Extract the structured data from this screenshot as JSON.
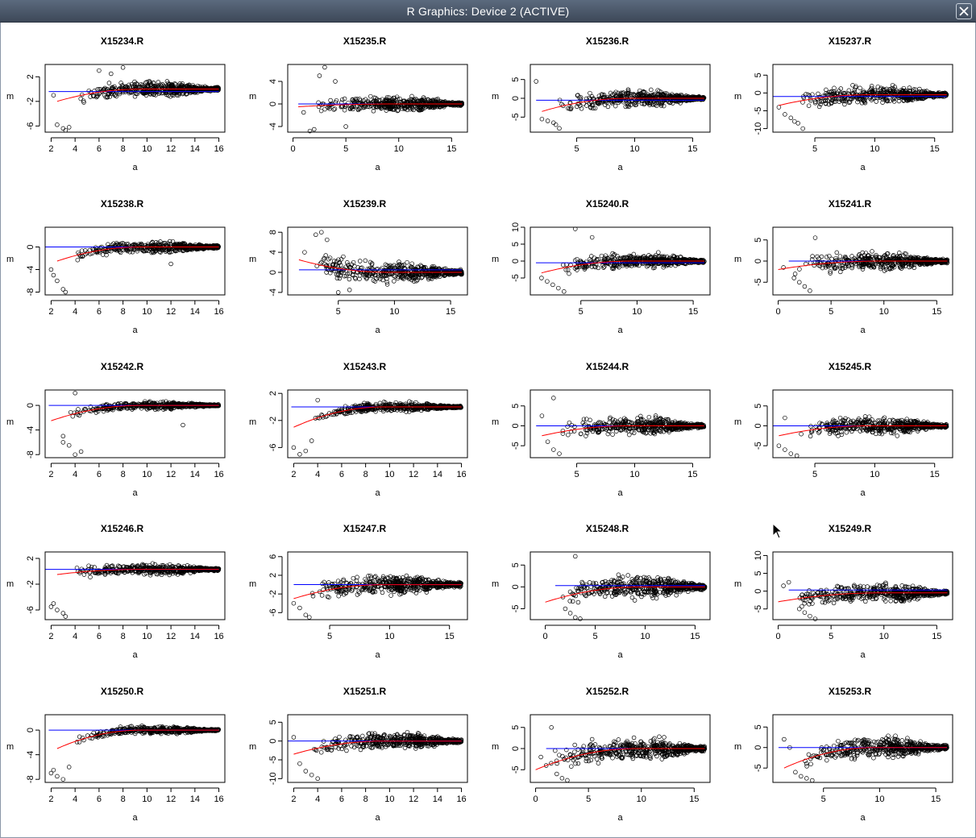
{
  "window": {
    "title": "R Graphics: Device 2 (ACTIVE)"
  },
  "plot_labels": {
    "xlabel": "a",
    "ylabel": "m"
  },
  "colors": {
    "loess": "#ff0000",
    "reference": "#0000ff",
    "points": "#000000"
  },
  "icons": {
    "close": "close-icon",
    "cursor": "mouse-cursor-icon"
  },
  "chart_data": [
    {
      "type": "scatter",
      "title": "X15234.R",
      "xlabel": "a",
      "ylabel": "m",
      "xlim": [
        1.5,
        16.5
      ],
      "ylim": [
        -7,
        4
      ],
      "xticks": [
        2,
        4,
        6,
        8,
        10,
        12,
        14,
        16
      ],
      "yticks": [
        -6,
        -2,
        2
      ],
      "x0": 2.5,
      "y0": -2,
      "yp": 3,
      "ye": 0,
      "ref": -0.4,
      "refStart": 1.8,
      "outliers": [
        [
          2.5,
          -5.8
        ],
        [
          3,
          -6.4
        ],
        [
          3.2,
          -6.7
        ],
        [
          3.5,
          -6.2
        ],
        [
          2.2,
          -1
        ],
        [
          6,
          3
        ],
        [
          7,
          2.5
        ],
        [
          8,
          3.5
        ]
      ],
      "grid": false
    },
    {
      "type": "scatter",
      "title": "X15235.R",
      "xlabel": "a",
      "ylabel": "m",
      "xlim": [
        -0.5,
        16.5
      ],
      "ylim": [
        -5,
        7
      ],
      "xticks": [
        0,
        5,
        10,
        15
      ],
      "yticks": [
        -4,
        0,
        4
      ],
      "x0": 0.5,
      "y0": -0.5,
      "yp": 3,
      "ye": 0,
      "ref": 0,
      "refStart": 0.5,
      "outliers": [
        [
          1.6,
          -4.8
        ],
        [
          2,
          -4.5
        ],
        [
          3,
          6.5
        ],
        [
          4,
          4
        ],
        [
          2.5,
          5
        ],
        [
          5,
          -4
        ],
        [
          1,
          -1.5
        ]
      ],
      "grid": false
    },
    {
      "type": "scatter",
      "title": "X15236.R",
      "xlabel": "a",
      "ylabel": "m",
      "xlim": [
        1,
        16.5
      ],
      "ylim": [
        -9,
        9
      ],
      "xticks": [
        5,
        10,
        15
      ],
      "yticks": [
        -5,
        0,
        5
      ],
      "x0": 2,
      "y0": -3.5,
      "yp": 5,
      "ye": 0,
      "ref": -0.5,
      "refStart": 1.5,
      "outliers": [
        [
          1.5,
          4.5
        ],
        [
          2,
          -5.5
        ],
        [
          2.5,
          -6
        ],
        [
          3,
          -6.5
        ],
        [
          3.2,
          -7
        ],
        [
          3.5,
          -8
        ]
      ],
      "grid": false
    },
    {
      "type": "scatter",
      "title": "X15237.R",
      "xlabel": "a",
      "ylabel": "m",
      "xlim": [
        1.5,
        16.5
      ],
      "ylim": [
        -11,
        8
      ],
      "xticks": [
        5,
        10,
        15
      ],
      "yticks": [
        -10,
        -5,
        0,
        5
      ],
      "x0": 2,
      "y0": -3.5,
      "yp": 6,
      "ye": -0.5,
      "ref": -1,
      "refStart": 1.5,
      "outliers": [
        [
          2.5,
          -6
        ],
        [
          3,
          -7
        ],
        [
          3.3,
          -8
        ],
        [
          3.6,
          -8.5
        ],
        [
          2,
          -4
        ],
        [
          4,
          -10
        ]
      ],
      "grid": false
    },
    {
      "type": "scatter",
      "title": "X15238.R",
      "xlabel": "a",
      "ylabel": "m",
      "xlim": [
        1.5,
        16.5
      ],
      "ylim": [
        -8.5,
        3.5
      ],
      "xticks": [
        2,
        4,
        6,
        8,
        10,
        12,
        14,
        16
      ],
      "yticks": [
        -8,
        -4,
        0
      ],
      "x0": 2.5,
      "y0": -2.5,
      "yp": 2.5,
      "ye": 0,
      "ref": 0,
      "refStart": 1.5,
      "outliers": [
        [
          2,
          -4
        ],
        [
          2.5,
          -6
        ],
        [
          3,
          -7.5
        ],
        [
          3.2,
          -8
        ],
        [
          2.2,
          -5
        ],
        [
          12,
          -3
        ]
      ],
      "grid": false
    },
    {
      "type": "scatter",
      "title": "X15239.R",
      "xlabel": "a",
      "ylabel": "m",
      "xlim": [
        0.5,
        16.5
      ],
      "ylim": [
        -4.5,
        9
      ],
      "xticks": [
        5,
        10,
        15
      ],
      "yticks": [
        -4,
        0,
        4,
        8
      ],
      "x0": 1.5,
      "y0": 2.5,
      "yp": 5,
      "ye": 0,
      "ref": 0.5,
      "refStart": 1.5,
      "outliers": [
        [
          3,
          7.5
        ],
        [
          3.5,
          8
        ],
        [
          4,
          6.5
        ],
        [
          2,
          4
        ],
        [
          5,
          -4
        ],
        [
          6,
          -3.5
        ]
      ],
      "grid": false
    },
    {
      "type": "scatter",
      "title": "X15240.R",
      "xlabel": "a",
      "ylabel": "m",
      "xlim": [
        0.5,
        16.5
      ],
      "ylim": [
        -10,
        10
      ],
      "xticks": [
        5,
        10,
        15
      ],
      "yticks": [
        -5,
        0,
        5,
        10
      ],
      "x0": 1.5,
      "y0": -3.5,
      "yp": 5,
      "ye": 0,
      "ref": -0.5,
      "refStart": 1,
      "outliers": [
        [
          1.5,
          -5
        ],
        [
          2,
          -6
        ],
        [
          2.5,
          -7
        ],
        [
          3,
          -8
        ],
        [
          3.5,
          -9
        ],
        [
          4.5,
          9.5
        ],
        [
          6,
          7
        ]
      ],
      "grid": false
    },
    {
      "type": "scatter",
      "title": "X15241.R",
      "xlabel": "a",
      "ylabel": "m",
      "xlim": [
        -0.5,
        16.5
      ],
      "ylim": [
        -8,
        8
      ],
      "xticks": [
        0,
        5,
        10,
        15
      ],
      "yticks": [
        -5,
        0,
        5
      ],
      "x0": 0,
      "y0": -2,
      "yp": 5,
      "ye": 0,
      "ref": 0,
      "refStart": 1,
      "outliers": [
        [
          1.5,
          -4
        ],
        [
          2,
          -5
        ],
        [
          2.5,
          -6
        ],
        [
          3,
          -7
        ],
        [
          0.5,
          -1.5
        ],
        [
          3.5,
          5.5
        ]
      ],
      "grid": false
    },
    {
      "type": "scatter",
      "title": "X15242.R",
      "xlabel": "a",
      "ylabel": "m",
      "xlim": [
        1.5,
        16.5
      ],
      "ylim": [
        -8.5,
        2.5
      ],
      "xticks": [
        2,
        4,
        6,
        8,
        10,
        12,
        14,
        16
      ],
      "yticks": [
        -8,
        -4,
        0
      ],
      "x0": 2,
      "y0": -2.5,
      "yp": 1.5,
      "ye": 0,
      "ref": 0,
      "refStart": 1.8,
      "outliers": [
        [
          3,
          -6
        ],
        [
          3.5,
          -6.5
        ],
        [
          4,
          -8
        ],
        [
          4.5,
          -7.5
        ],
        [
          3,
          -5
        ],
        [
          4,
          2
        ],
        [
          13,
          -3.2
        ]
      ],
      "grid": false
    },
    {
      "type": "scatter",
      "title": "X15243.R",
      "xlabel": "a",
      "ylabel": "m",
      "xlim": [
        1.5,
        16.5
      ],
      "ylim": [
        -7.5,
        2.5
      ],
      "xticks": [
        2,
        4,
        6,
        8,
        10,
        12,
        14,
        16
      ],
      "yticks": [
        -6,
        -2,
        2
      ],
      "x0": 2,
      "y0": -3,
      "yp": 1.5,
      "ye": 0,
      "ref": 0,
      "refStart": 1.8,
      "outliers": [
        [
          2,
          -6
        ],
        [
          2.5,
          -7
        ],
        [
          3,
          -6.5
        ],
        [
          3.5,
          -5
        ],
        [
          4,
          1
        ]
      ],
      "grid": false
    },
    {
      "type": "scatter",
      "title": "X15244.R",
      "xlabel": "a",
      "ylabel": "m",
      "xlim": [
        1,
        16.5
      ],
      "ylim": [
        -8,
        9
      ],
      "xticks": [
        5,
        10,
        15
      ],
      "yticks": [
        -5,
        0,
        5
      ],
      "x0": 2,
      "y0": -2.5,
      "yp": 5,
      "ye": 0,
      "ref": 0,
      "refStart": 1.5,
      "outliers": [
        [
          2,
          2.5
        ],
        [
          2.5,
          -4
        ],
        [
          3,
          -6
        ],
        [
          3.5,
          -7
        ],
        [
          3,
          7
        ]
      ],
      "grid": false
    },
    {
      "type": "scatter",
      "title": "X15245.R",
      "xlabel": "a",
      "ylabel": "m",
      "xlim": [
        1.5,
        16.5
      ],
      "ylim": [
        -8,
        9
      ],
      "xticks": [
        5,
        10,
        15
      ],
      "yticks": [
        -5,
        0,
        5
      ],
      "x0": 2,
      "y0": -2.5,
      "yp": 5,
      "ye": 0,
      "ref": 0,
      "refStart": 1.5,
      "outliers": [
        [
          2,
          -5
        ],
        [
          2.5,
          -6
        ],
        [
          3,
          -7
        ],
        [
          3.5,
          -7.5
        ],
        [
          2.5,
          2
        ]
      ],
      "grid": false
    },
    {
      "type": "scatter",
      "title": "X15246.R",
      "xlabel": "a",
      "ylabel": "m",
      "xlim": [
        1.5,
        16.5
      ],
      "ylim": [
        -7.5,
        3
      ],
      "xticks": [
        2,
        4,
        6,
        8,
        10,
        12,
        14,
        16
      ],
      "yticks": [
        -6,
        -2,
        2
      ],
      "x0": 2.5,
      "y0": -0.5,
      "yp": 2,
      "ye": 0.3,
      "ref": 0.3,
      "refStart": 1.5,
      "outliers": [
        [
          2,
          -5.5
        ],
        [
          2.5,
          -6
        ],
        [
          3,
          -6.5
        ],
        [
          3.2,
          -7
        ],
        [
          2.2,
          -5
        ]
      ],
      "grid": false
    },
    {
      "type": "scatter",
      "title": "X15247.R",
      "xlabel": "a",
      "ylabel": "m",
      "xlim": [
        1.5,
        16.5
      ],
      "ylim": [
        -7.5,
        7
      ],
      "xticks": [
        5,
        10,
        15
      ],
      "yticks": [
        -6,
        -2,
        2,
        6
      ],
      "x0": 2,
      "y0": -3,
      "yp": 5,
      "ye": 0,
      "ref": 0,
      "refStart": 2,
      "outliers": [
        [
          3,
          -6.5
        ],
        [
          3.3,
          -7
        ],
        [
          2.5,
          -5
        ],
        [
          2,
          -4
        ]
      ],
      "grid": false
    },
    {
      "type": "scatter",
      "title": "X15248.R",
      "xlabel": "a",
      "ylabel": "m",
      "xlim": [
        -1.5,
        16.5
      ],
      "ylim": [
        -7.5,
        8
      ],
      "xticks": [
        0,
        5,
        10,
        15
      ],
      "yticks": [
        -5,
        0,
        5
      ],
      "x0": 0,
      "y0": -3.5,
      "yp": 6,
      "ye": 0,
      "ref": 0.3,
      "refStart": 1,
      "outliers": [
        [
          2,
          -5
        ],
        [
          2.5,
          -6
        ],
        [
          3,
          -7
        ],
        [
          3.5,
          -7.5
        ],
        [
          3,
          7
        ]
      ],
      "grid": false
    },
    {
      "type": "scatter",
      "title": "X15249.R",
      "xlabel": "a",
      "ylabel": "m",
      "xlim": [
        -0.5,
        16.5
      ],
      "ylim": [
        -8,
        11
      ],
      "xticks": [
        0,
        5,
        10,
        15
      ],
      "yticks": [
        -5,
        0,
        5,
        10
      ],
      "x0": 0,
      "y0": -3,
      "yp": 6,
      "ye": -0.5,
      "ref": 0.3,
      "refStart": 1,
      "outliers": [
        [
          2,
          -5
        ],
        [
          2.5,
          -6
        ],
        [
          3,
          -7
        ],
        [
          3.5,
          -8
        ],
        [
          0.5,
          1.5
        ],
        [
          1,
          2.5
        ]
      ],
      "grid": false
    },
    {
      "type": "scatter",
      "title": "X15250.R",
      "xlabel": "a",
      "ylabel": "m",
      "xlim": [
        1.5,
        16.5
      ],
      "ylim": [
        -8.5,
        2.5
      ],
      "xticks": [
        2,
        4,
        6,
        8,
        10,
        12,
        14,
        16
      ],
      "yticks": [
        -8,
        -4,
        0
      ],
      "x0": 2.5,
      "y0": -3,
      "yp": 1.5,
      "ye": 0,
      "ref": 0,
      "refStart": 1.8,
      "outliers": [
        [
          2,
          -7
        ],
        [
          2.5,
          -7.5
        ],
        [
          3,
          -8
        ],
        [
          3.5,
          -6
        ],
        [
          2.2,
          -6.5
        ]
      ],
      "grid": false
    },
    {
      "type": "scatter",
      "title": "X15251.R",
      "xlabel": "a",
      "ylabel": "m",
      "xlim": [
        1.5,
        16.5
      ],
      "ylim": [
        -11,
        7
      ],
      "xticks": [
        2,
        4,
        6,
        8,
        10,
        12,
        14,
        16
      ],
      "yticks": [
        -10,
        -5,
        0,
        5
      ],
      "x0": 2,
      "y0": -3.5,
      "yp": 5,
      "ye": 0,
      "ref": 0,
      "refStart": 1.5,
      "outliers": [
        [
          2.5,
          -6
        ],
        [
          3,
          -8
        ],
        [
          3.5,
          -9
        ],
        [
          4,
          -10
        ],
        [
          2,
          1
        ]
      ],
      "grid": false
    },
    {
      "type": "scatter",
      "title": "X15252.R",
      "xlabel": "a",
      "ylabel": "m",
      "xlim": [
        -0.5,
        16.5
      ],
      "ylim": [
        -8,
        8
      ],
      "xticks": [
        0,
        5,
        10,
        15
      ],
      "yticks": [
        -5,
        0,
        5
      ],
      "x0": 0,
      "y0": -5,
      "yp": 6,
      "ye": 0,
      "ref": 0,
      "refStart": 1,
      "outliers": [
        [
          0.5,
          -2
        ],
        [
          1,
          -4
        ],
        [
          2,
          -6
        ],
        [
          2.5,
          -7
        ],
        [
          3,
          -7.5
        ],
        [
          1.5,
          5
        ]
      ],
      "grid": false
    },
    {
      "type": "scatter",
      "title": "X15253.R",
      "xlabel": "a",
      "ylabel": "m",
      "xlim": [
        0.5,
        16.5
      ],
      "ylim": [
        -8.5,
        8
      ],
      "xticks": [
        5,
        10,
        15
      ],
      "yticks": [
        -5,
        0,
        5
      ],
      "x0": 1.5,
      "y0": -5,
      "yp": 6,
      "ye": 0,
      "ref": 0,
      "refStart": 1,
      "outliers": [
        [
          2.5,
          -6
        ],
        [
          3,
          -7
        ],
        [
          3.5,
          -7.5
        ],
        [
          4,
          -8
        ],
        [
          1.5,
          2
        ],
        [
          2,
          0
        ]
      ],
      "grid": false
    }
  ]
}
